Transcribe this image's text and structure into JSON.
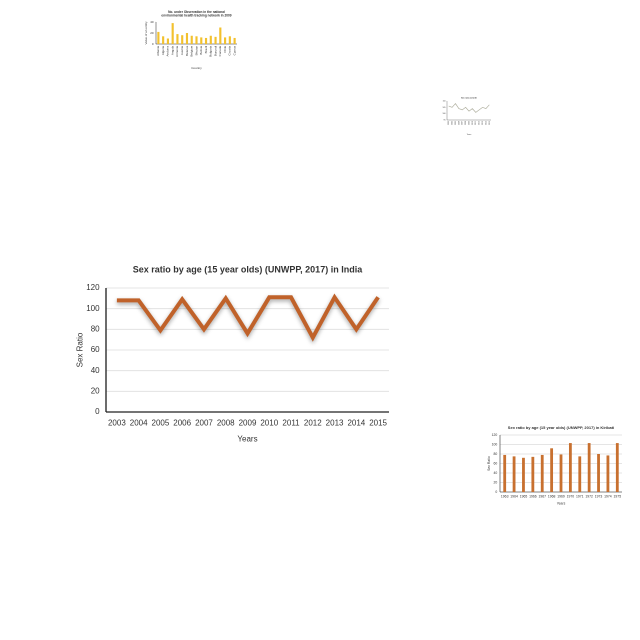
{
  "chart_data": [
    {
      "type": "bar",
      "title": [
        "No. under Observation in the national",
        "environmental health tracking network in 2009"
      ],
      "x_label": "Country",
      "y_label": "Value of an entity",
      "categories": [
        "Albania",
        "Algeria",
        "Andorra",
        "Angola",
        "Armenia",
        "Austria",
        "Belarus",
        "Belgium",
        "Bhutan",
        "Bolivia",
        "Brazil",
        "Bulgaria",
        "Burundi",
        "Canada",
        "Chile",
        "Croatia",
        "Cyprus"
      ],
      "values": [
        22,
        14,
        10,
        38,
        18,
        16,
        20,
        15,
        14,
        12,
        11,
        15,
        13,
        30,
        12,
        14,
        11
      ],
      "color": "#f2c12e",
      "ylim": [
        0,
        40
      ],
      "yticks": [
        0,
        20,
        40
      ]
    },
    {
      "type": "line",
      "title": "Sex ratio at birth",
      "x_label": "Years",
      "categories": [
        "2003",
        "2004",
        "2005",
        "2006",
        "2007",
        "2008",
        "2009",
        "2010",
        "2011",
        "2012",
        "2013",
        "2014",
        "2015"
      ],
      "values": [
        106,
        105,
        108,
        104,
        103,
        105,
        102,
        104,
        101,
        103,
        105,
        104,
        107
      ],
      "color": "#b0b0a0",
      "ylim": [
        95,
        110
      ],
      "yticks": [
        95,
        100,
        105,
        110
      ]
    },
    {
      "type": "line",
      "title": "Sex ratio by age (15 year olds) (UNWPP, 2017) in India",
      "x_label": "Years",
      "y_label": "Sex Ratio",
      "categories": [
        "2003",
        "2004",
        "2005",
        "2006",
        "2007",
        "2008",
        "2009",
        "2010",
        "2011",
        "2012",
        "2013",
        "2014",
        "2015"
      ],
      "values": [
        108,
        108,
        79,
        109,
        80,
        110,
        76,
        111,
        111,
        72,
        111,
        80,
        111
      ],
      "color": "#c0622a",
      "ylim": [
        0,
        120
      ],
      "yticks": [
        0,
        20,
        40,
        60,
        80,
        100,
        120
      ],
      "grid": true
    },
    {
      "type": "bar",
      "title": "Sex ratio by age (15 year olds) (UNWPP, 2017) in Kiribati",
      "x_label": "Years",
      "y_label": "Sex Ratio",
      "categories": [
        "1963",
        "1964",
        "1965",
        "1966",
        "1967",
        "1968",
        "1969",
        "1970",
        "1971",
        "1972",
        "1973",
        "1974",
        "1975"
      ],
      "values": [
        78,
        75,
        72,
        74,
        78,
        92,
        79,
        103,
        75,
        103,
        80,
        77,
        103
      ],
      "color": "#c8702f",
      "ylim": [
        0,
        120
      ],
      "yticks": [
        0,
        20,
        40,
        60,
        80,
        100,
        120
      ],
      "grid": true
    }
  ]
}
